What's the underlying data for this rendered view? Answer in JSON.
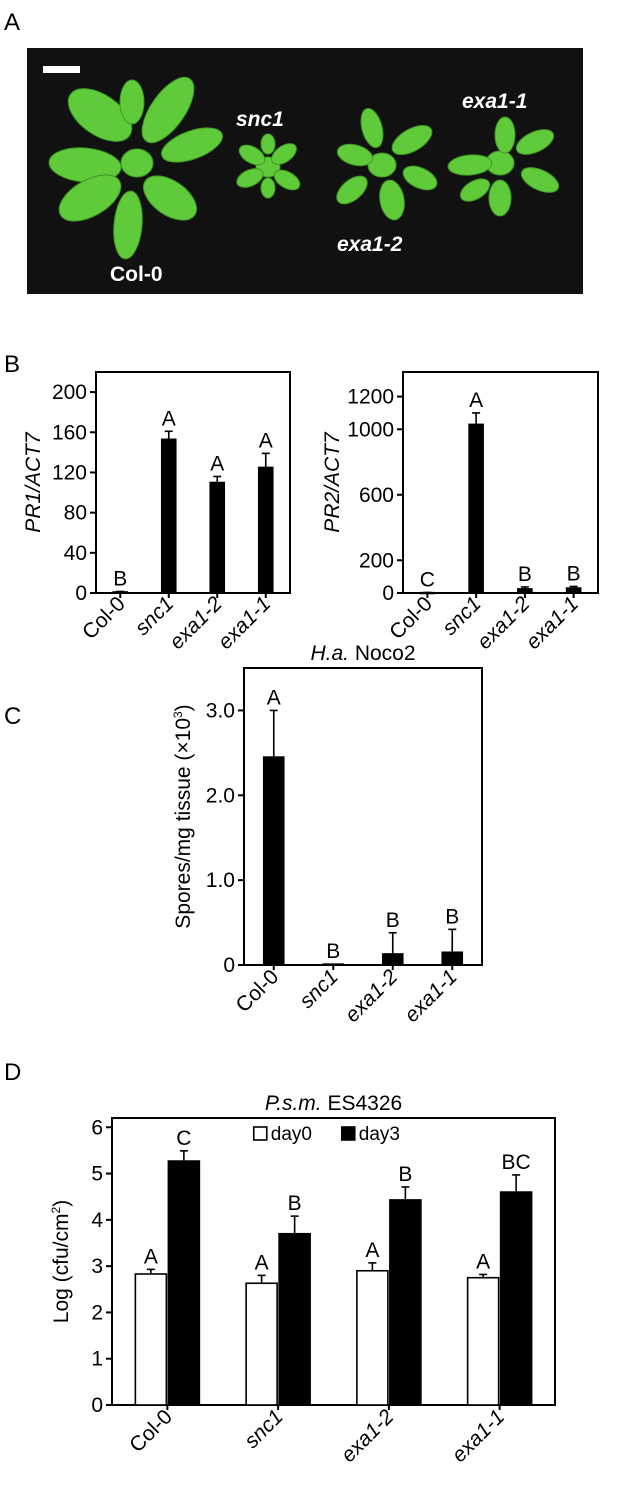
{
  "panel_labels": {
    "a": "A",
    "b": "B",
    "c": "C",
    "d": "D"
  },
  "photo": {
    "plant_labels": [
      "Col-0",
      "snc1",
      "exa1-2",
      "exa1-1"
    ],
    "bg_color": "#111111",
    "leaf_color": "#5fca3a"
  },
  "chart_data": [
    {
      "id": "pr1",
      "type": "bar",
      "ylabel": "PR1/ACT7",
      "categories": [
        "Col-0",
        "snc1",
        "exa1-2",
        "exa1-1"
      ],
      "values": [
        1,
        153,
        110,
        125
      ],
      "errors": [
        0.5,
        8,
        6,
        14
      ],
      "letters": [
        "B",
        "A",
        "A",
        "A"
      ],
      "ylim": [
        0,
        220
      ],
      "yticks": [
        0,
        40,
        80,
        120,
        160,
        200
      ],
      "ytick_labels": [
        "0",
        "40",
        "80",
        "120",
        "160",
        "200"
      ]
    },
    {
      "id": "pr2",
      "type": "bar",
      "ylabel": "PR2/ACT7",
      "categories": [
        "Col-0",
        "snc1",
        "exa1-2",
        "exa1-1"
      ],
      "values": [
        2,
        1030,
        25,
        30
      ],
      "errors": [
        1,
        70,
        12,
        10
      ],
      "letters": [
        "C",
        "A",
        "B",
        "B"
      ],
      "ylim": [
        0,
        1350
      ],
      "yticks": [
        0,
        200,
        600,
        1000,
        1200
      ],
      "ytick_labels": [
        "0",
        "200",
        "600",
        "1000",
        "1200"
      ]
    },
    {
      "id": "spores",
      "type": "bar",
      "title_italic": "H.a.",
      "title_rest": " Noco2",
      "ylabel": "Spores/mg tissue (×10",
      "ylabel_sup": "3",
      "ylabel_end": ")",
      "categories": [
        "Col-0",
        "snc1",
        "exa1-2",
        "exa1-1"
      ],
      "values": [
        2.45,
        0.01,
        0.13,
        0.15
      ],
      "errors": [
        0.55,
        0.0,
        0.25,
        0.27
      ],
      "letters": [
        "A",
        "B",
        "B",
        "B"
      ],
      "ylim": [
        0,
        3.5
      ],
      "yticks": [
        0,
        1.0,
        2.0,
        3.0
      ],
      "ytick_labels": [
        "0",
        "1.0",
        "2.0",
        "3.0"
      ]
    },
    {
      "id": "psm",
      "type": "bar",
      "title_italic": "P.s.m.",
      "title_rest": " ES4326",
      "ylabel": "Log (cfu/cm",
      "ylabel_sup": "2",
      "ylabel_end": ")",
      "categories": [
        "Col-0",
        "snc1",
        "exa1-2",
        "exa1-1"
      ],
      "series": [
        {
          "name": "day0",
          "values": [
            2.83,
            2.63,
            2.9,
            2.75
          ],
          "errors": [
            0.1,
            0.17,
            0.17,
            0.07
          ],
          "letters": [
            "A",
            "A",
            "A",
            "A"
          ],
          "color": "#ffffff"
        },
        {
          "name": "day3",
          "values": [
            5.27,
            3.7,
            4.43,
            4.6
          ],
          "errors": [
            0.22,
            0.38,
            0.28,
            0.37
          ],
          "letters": [
            "C",
            "B",
            "B",
            "BC"
          ],
          "color": "#000000"
        }
      ],
      "ylim": [
        0,
        6.2
      ],
      "yticks": [
        0,
        1,
        2,
        3,
        4,
        5,
        6
      ],
      "ytick_labels": [
        "0",
        "1",
        "2",
        "3",
        "4",
        "5",
        "6"
      ],
      "legend": "top-center"
    }
  ]
}
